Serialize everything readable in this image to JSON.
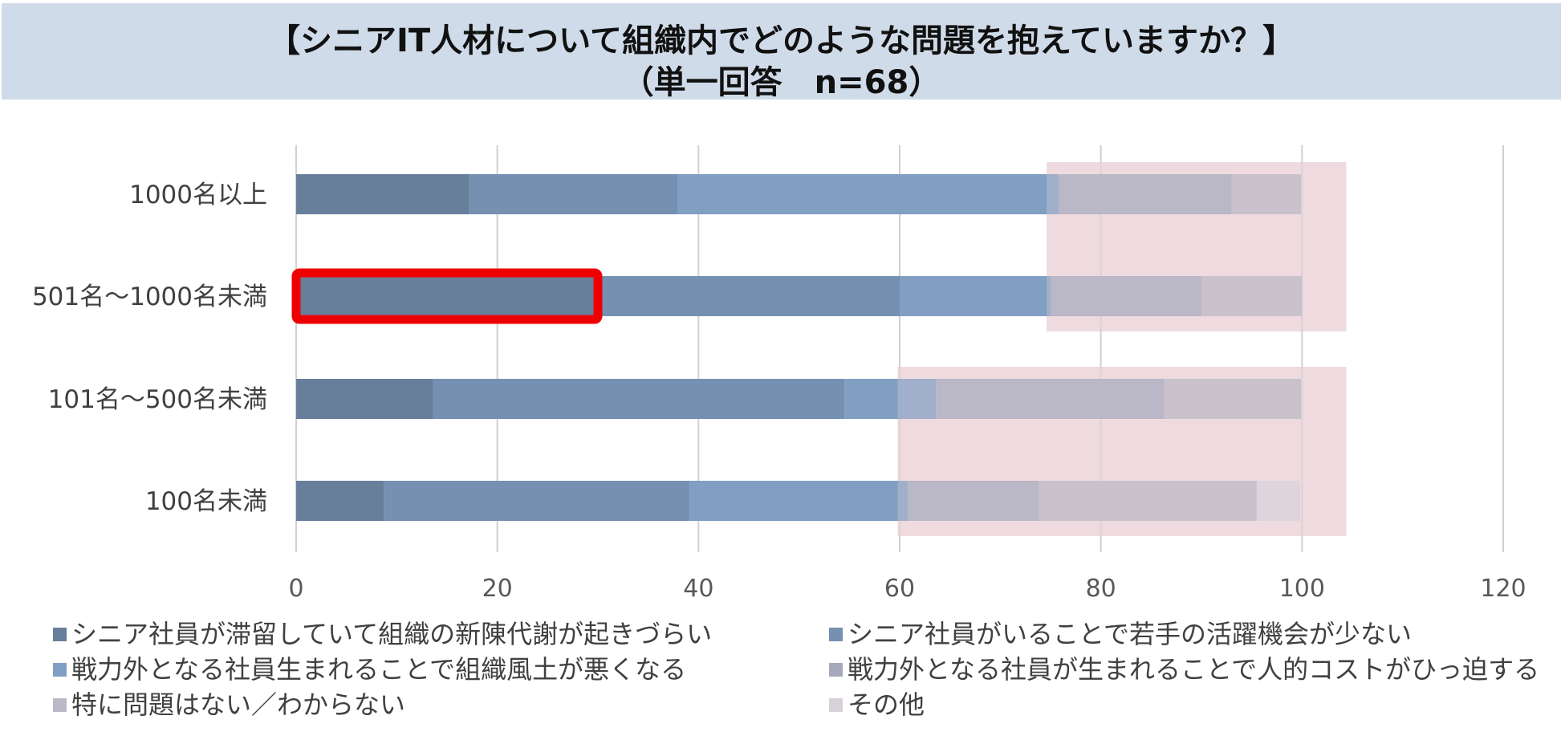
{
  "chart_data": {
    "type": "bar",
    "orientation": "horizontal-stacked",
    "title": "【シニアIT人材について組織内でどのような問題を抱えていますか？】",
    "subtitle": "（単一回答　n=68）",
    "categories": [
      "1000名以上",
      "501名～1000名未満",
      "101名～500名未満",
      "100名未満"
    ],
    "series": [
      {
        "name": "シニア社員が滞留していて組織の新陳代謝が起きづらい",
        "color": "#687f9c",
        "values": [
          17.2,
          30.0,
          13.6,
          8.7
        ]
      },
      {
        "name": "シニア社員がいることで若手の活躍機会が少ない",
        "color": "#7690b1",
        "values": [
          20.7,
          30.0,
          40.9,
          30.4
        ]
      },
      {
        "name": "戦力外となる社員生まれることで組織風土が悪くなる",
        "color": "#819fc3",
        "values": [
          37.9,
          15.0,
          9.1,
          21.7
        ]
      },
      {
        "name": "戦力外となる社員が生まれることで人的コストがひっ迫する",
        "color": "#a6a9bd",
        "values": [
          17.2,
          15.0,
          22.7,
          13.0
        ]
      },
      {
        "name": "特に問題はない／わからない",
        "color": "#bab9c7",
        "values": [
          6.9,
          10.0,
          13.6,
          21.7
        ]
      },
      {
        "name": "その他",
        "color": "#d7d2da",
        "values": [
          0,
          0,
          0,
          4.3
        ]
      }
    ],
    "xlim": [
      0,
      120
    ],
    "xticks": [
      0,
      20,
      40,
      60,
      80,
      100,
      120
    ],
    "grid": true,
    "legend_position": "bottom",
    "highlights": [
      {
        "type": "shaded-region",
        "color": "#efdbdf",
        "x_from": 74.6,
        "x_to": 104.4,
        "categories": [
          "1000名以上",
          "501名～1000名未満"
        ]
      },
      {
        "type": "shaded-region",
        "color": "#efdbdf",
        "x_from": 59.8,
        "x_to": 104.4,
        "categories": [
          "101名～500名未満",
          "100名未満"
        ]
      },
      {
        "type": "outline-box",
        "color": "#ee0000",
        "x_from": 0,
        "x_to": 30,
        "category": "501名～1000名未満"
      }
    ]
  }
}
